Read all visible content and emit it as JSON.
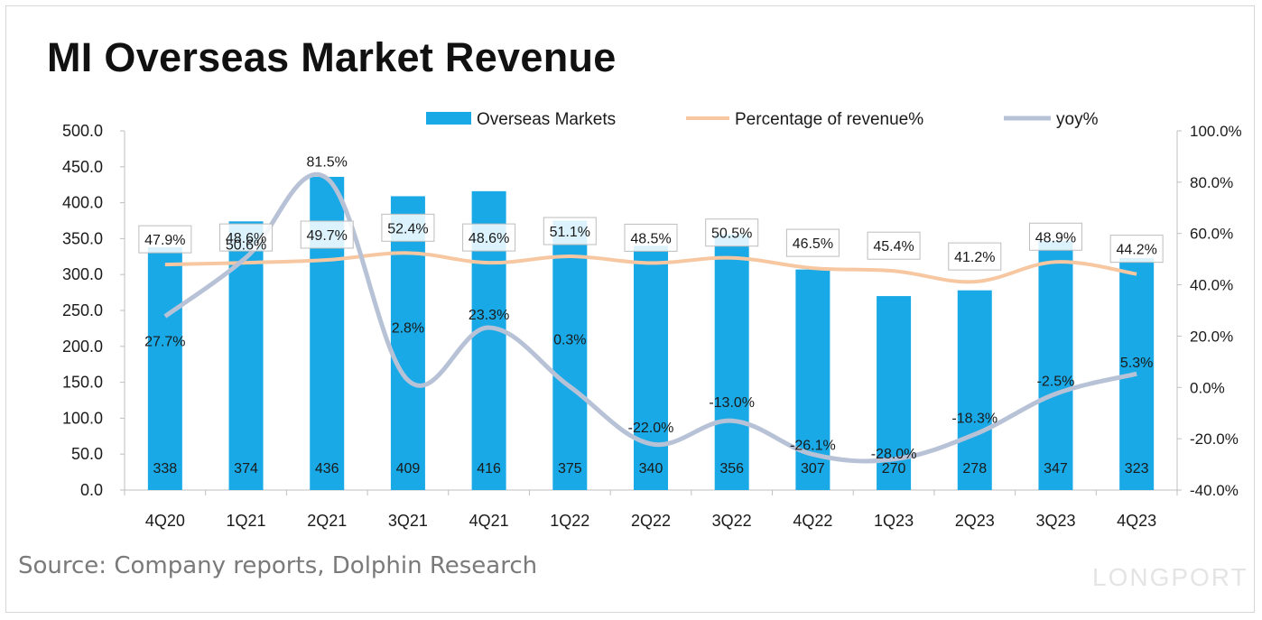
{
  "title": "MI Overseas Market Revenue",
  "source": "Source: Company reports, Dolphin Research",
  "watermark": "LONGPORT",
  "colors": {
    "bar": "#19a9e6",
    "share_line": "#f6c7a0",
    "yoy_line": "#b8c2d6",
    "axis": "#bfbfbf"
  },
  "chart_data": {
    "type": "bar",
    "categories": [
      "4Q20",
      "1Q21",
      "2Q21",
      "3Q21",
      "4Q21",
      "1Q22",
      "2Q22",
      "3Q22",
      "4Q22",
      "1Q23",
      "2Q23",
      "3Q23",
      "4Q23"
    ],
    "series": [
      {
        "name": "Overseas Markets",
        "type": "bar",
        "axis": "left",
        "values": [
          338,
          374,
          436,
          409,
          416,
          375,
          340,
          356,
          307,
          270,
          278,
          347,
          323
        ],
        "labels": [
          "338",
          "374",
          "436",
          "409",
          "416",
          "375",
          "340",
          "356",
          "307",
          "270",
          "278",
          "347",
          "323"
        ]
      },
      {
        "name": "Percentage of revenue%",
        "type": "line",
        "axis": "right",
        "values": [
          47.9,
          48.6,
          49.7,
          52.4,
          48.6,
          51.1,
          48.5,
          50.5,
          46.5,
          45.4,
          41.2,
          48.9,
          44.2
        ],
        "labels": [
          "47.9%",
          "48.6%",
          "49.7%",
          "52.4%",
          "48.6%",
          "51.1%",
          "48.5%",
          "50.5%",
          "46.5%",
          "45.4%",
          "41.2%",
          "48.9%",
          "44.2%"
        ]
      },
      {
        "name": "yoy%",
        "type": "line",
        "axis": "right",
        "values": [
          27.7,
          50.6,
          81.5,
          2.8,
          23.3,
          0.3,
          -22.0,
          -13.0,
          -26.1,
          -28.0,
          -18.3,
          -2.5,
          5.3
        ],
        "labels": [
          "27.7%",
          "50.6%",
          "81.5%",
          "2.8%",
          "23.3%",
          "0.3%",
          "-22.0%",
          "-13.0%",
          "-26.1%",
          "-28.0%",
          "-18.3%",
          "-2.5%",
          "5.3%"
        ]
      }
    ],
    "y_left": {
      "min": 0,
      "max": 500,
      "step": 50,
      "ticks": [
        "0.0",
        "50.0",
        "100.0",
        "150.0",
        "200.0",
        "250.0",
        "300.0",
        "350.0",
        "400.0",
        "450.0",
        "500.0"
      ]
    },
    "y_right": {
      "min": -40,
      "max": 100,
      "step": 20,
      "ticks": [
        "-40.0%",
        "-20.0%",
        "0.0%",
        "20.0%",
        "40.0%",
        "60.0%",
        "80.0%",
        "100.0%"
      ]
    },
    "grid": false,
    "legend_position": "top"
  }
}
